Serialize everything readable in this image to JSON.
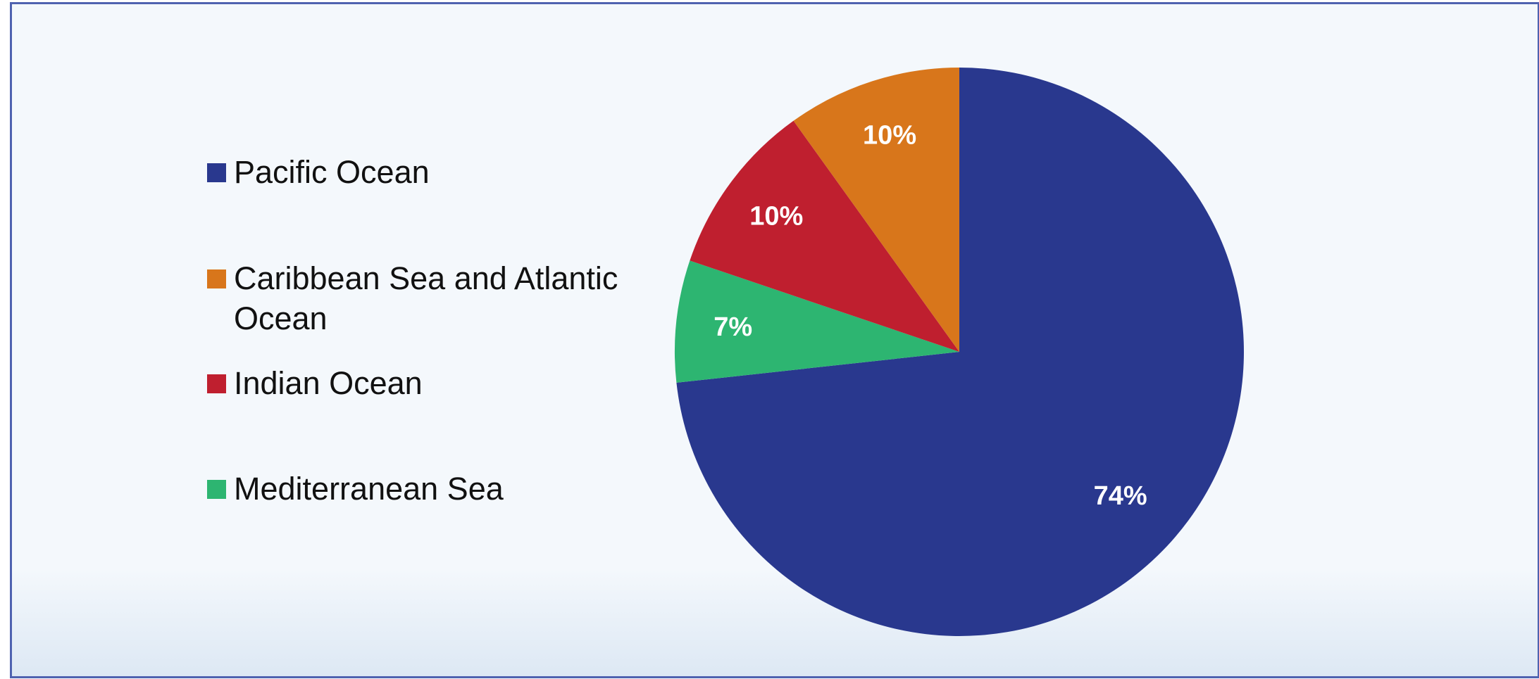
{
  "chart_data": {
    "type": "pie",
    "title": "",
    "legend_position": "left",
    "categories": [
      "Pacific Ocean",
      "Caribbean Sea and Atlantic Ocean",
      "Indian Ocean",
      "Mediterranean Sea"
    ],
    "values": [
      74,
      10,
      10,
      7
    ],
    "data_labels": [
      "74%",
      "10%",
      "10%",
      "7%"
    ],
    "colors": [
      "#29388e",
      "#d8761b",
      "#bf1f2f",
      "#2db571"
    ],
    "label_color": "#ffffff"
  }
}
